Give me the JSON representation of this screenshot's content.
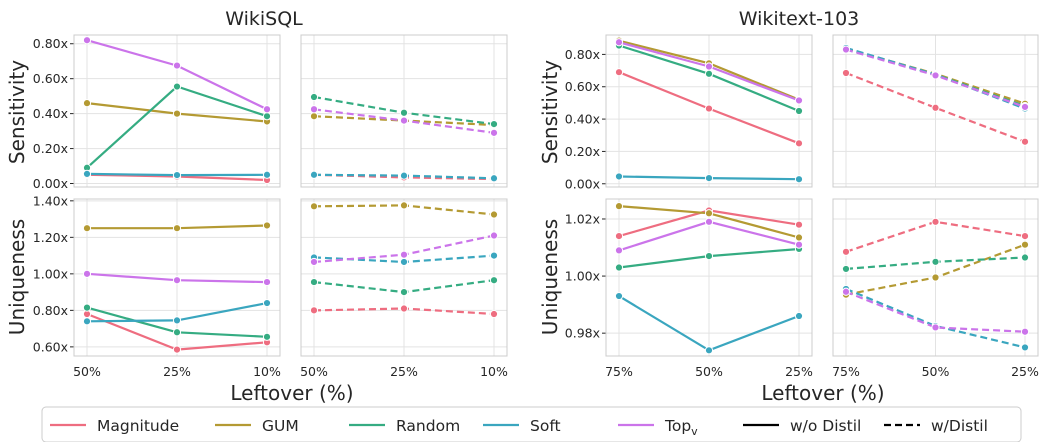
{
  "chart_data": [
    {
      "type": "line",
      "panel_title": "WikiSQL",
      "ylabel": "Sensitivity",
      "variant": "w/o Distil",
      "x": [
        "50%",
        "25%",
        "10%"
      ],
      "yticks": [
        "0.00x",
        "0.20x",
        "0.40x",
        "0.60x",
        "0.80x"
      ],
      "ylim": [
        -0.02,
        0.85
      ],
      "series": [
        {
          "name": "Magnitude",
          "values": [
            0.05,
            0.04,
            0.02
          ]
        },
        {
          "name": "GUM",
          "values": [
            0.46,
            0.4,
            0.355
          ]
        },
        {
          "name": "Random",
          "values": [
            0.09,
            0.555,
            0.385
          ]
        },
        {
          "name": "Soft",
          "values": [
            0.055,
            0.048,
            0.05
          ]
        },
        {
          "name": "Top_v",
          "values": [
            0.82,
            0.675,
            0.425
          ]
        }
      ]
    },
    {
      "type": "line",
      "panel_title": "WikiSQL",
      "ylabel": "Sensitivity",
      "variant": "w/Distil",
      "x": [
        "50%",
        "25%",
        "10%"
      ],
      "ylim": [
        -0.02,
        0.85
      ],
      "series": [
        {
          "name": "Magnitude",
          "values": [
            0.05,
            0.035,
            0.025
          ]
        },
        {
          "name": "GUM",
          "values": [
            0.385,
            0.36,
            0.335
          ]
        },
        {
          "name": "Random",
          "values": [
            0.495,
            0.405,
            0.34
          ]
        },
        {
          "name": "Soft",
          "values": [
            0.05,
            0.045,
            0.03
          ]
        },
        {
          "name": "Top_v",
          "values": [
            0.425,
            0.36,
            0.29
          ]
        }
      ]
    },
    {
      "type": "line",
      "panel_title": "Wikitext-103",
      "ylabel": "Sensitivity",
      "variant": "w/o Distil",
      "x": [
        "75%",
        "50%",
        "25%"
      ],
      "yticks": [
        "0.00x",
        "0.20x",
        "0.40x",
        "0.60x",
        "0.80x"
      ],
      "ylim": [
        -0.02,
        0.92
      ],
      "series": [
        {
          "name": "Magnitude",
          "values": [
            0.69,
            0.465,
            0.25
          ]
        },
        {
          "name": "GUM",
          "values": [
            0.885,
            0.745,
            0.52
          ]
        },
        {
          "name": "Random",
          "values": [
            0.855,
            0.68,
            0.45
          ]
        },
        {
          "name": "Soft",
          "values": [
            0.045,
            0.035,
            0.028
          ]
        },
        {
          "name": "Top_v",
          "values": [
            0.875,
            0.725,
            0.515
          ]
        }
      ]
    },
    {
      "type": "line",
      "panel_title": "Wikitext-103",
      "ylabel": "Sensitivity",
      "variant": "w/Distil",
      "x": [
        "75%",
        "50%",
        "25%"
      ],
      "ylim": [
        -0.02,
        0.92
      ],
      "series": [
        {
          "name": "Magnitude",
          "values": [
            0.685,
            0.47,
            0.26
          ]
        },
        {
          "name": "GUM",
          "values": [
            0.835,
            0.68,
            0.495
          ]
        },
        {
          "name": "Random",
          "values": [
            0.835,
            0.675,
            0.48
          ]
        },
        {
          "name": "Soft",
          "values": [
            0.84,
            0.675,
            0.465
          ]
        },
        {
          "name": "Top_v",
          "values": [
            0.83,
            0.67,
            0.475
          ]
        }
      ]
    },
    {
      "type": "line",
      "panel_title": "WikiSQL",
      "ylabel": "Uniqueness",
      "variant": "w/o Distil",
      "x": [
        "50%",
        "25%",
        "10%"
      ],
      "yticks": [
        "0.60x",
        "0.80x",
        "1.00x",
        "1.20x",
        "1.40x"
      ],
      "ylim": [
        0.55,
        1.41
      ],
      "series": [
        {
          "name": "Magnitude",
          "values": [
            0.78,
            0.585,
            0.625
          ]
        },
        {
          "name": "GUM",
          "values": [
            1.25,
            1.25,
            1.265
          ]
        },
        {
          "name": "Random",
          "values": [
            0.815,
            0.68,
            0.655
          ]
        },
        {
          "name": "Soft",
          "values": [
            0.74,
            0.745,
            0.84
          ]
        },
        {
          "name": "Top_v",
          "values": [
            1.0,
            0.965,
            0.955
          ]
        }
      ]
    },
    {
      "type": "line",
      "panel_title": "WikiSQL",
      "ylabel": "Uniqueness",
      "variant": "w/Distil",
      "x": [
        "50%",
        "25%",
        "10%"
      ],
      "ylim": [
        0.55,
        1.41
      ],
      "series": [
        {
          "name": "Magnitude",
          "values": [
            0.8,
            0.81,
            0.78
          ]
        },
        {
          "name": "GUM",
          "values": [
            1.37,
            1.375,
            1.325
          ]
        },
        {
          "name": "Random",
          "values": [
            0.955,
            0.9,
            0.965
          ]
        },
        {
          "name": "Soft",
          "values": [
            1.09,
            1.065,
            1.1
          ]
        },
        {
          "name": "Top_v",
          "values": [
            1.065,
            1.105,
            1.21
          ]
        }
      ]
    },
    {
      "type": "line",
      "panel_title": "Wikitext-103",
      "ylabel": "Uniqueness",
      "variant": "w/o Distil",
      "x": [
        "75%",
        "50%",
        "25%"
      ],
      "yticks": [
        "0.98x",
        "1.00x",
        "1.02x"
      ],
      "ylim": [
        0.972,
        1.027
      ],
      "series": [
        {
          "name": "Magnitude",
          "values": [
            1.014,
            1.023,
            1.018
          ]
        },
        {
          "name": "GUM",
          "values": [
            1.0245,
            1.022,
            1.0135
          ]
        },
        {
          "name": "Random",
          "values": [
            1.003,
            1.007,
            1.0095
          ]
        },
        {
          "name": "Soft",
          "values": [
            0.993,
            0.974,
            0.986
          ]
        },
        {
          "name": "Top_v",
          "values": [
            1.009,
            1.019,
            1.011
          ]
        }
      ]
    },
    {
      "type": "line",
      "panel_title": "Wikitext-103",
      "ylabel": "Uniqueness",
      "variant": "w/Distil",
      "x": [
        "75%",
        "50%",
        "25%"
      ],
      "ylim": [
        0.972,
        1.027
      ],
      "series": [
        {
          "name": "Magnitude",
          "values": [
            1.0085,
            1.019,
            1.014
          ]
        },
        {
          "name": "GUM",
          "values": [
            0.9935,
            0.9995,
            1.011
          ]
        },
        {
          "name": "Random",
          "values": [
            1.0025,
            1.005,
            1.0065
          ]
        },
        {
          "name": "Soft",
          "values": [
            0.9955,
            0.9825,
            0.975
          ]
        },
        {
          "name": "Top_v",
          "values": [
            0.9945,
            0.982,
            0.9805
          ]
        }
      ]
    }
  ],
  "titles": {
    "left": "WikiSQL",
    "right": "Wikitext-103"
  },
  "axis_labels": {
    "sensitivity": "Sensitivity",
    "uniqueness": "Uniqueness",
    "xlabel_left": "Leftover (%)",
    "xlabel_right": "Leftover (%)"
  },
  "legend": {
    "placement": "bottom",
    "items": [
      {
        "label": "Magnitude",
        "color": "#ee6d80",
        "style": "solid"
      },
      {
        "label": "GUM",
        "color": "#b49a33",
        "style": "solid"
      },
      {
        "label": "Random",
        "color": "#35ac82",
        "style": "solid"
      },
      {
        "label": "Soft",
        "color": "#3aa6bf",
        "style": "solid"
      },
      {
        "label": "Top",
        "sub": "v",
        "color": "#cb74ea",
        "style": "solid"
      },
      {
        "label": "w/o Distil",
        "color": "#000000",
        "style": "solid"
      },
      {
        "label": "w/Distil",
        "color": "#000000",
        "style": "dashed"
      }
    ]
  },
  "colors": {
    "Magnitude": "#ee6d80",
    "GUM": "#b49a33",
    "Random": "#35ac82",
    "Soft": "#3aa6bf",
    "Top_v": "#cb74ea"
  }
}
